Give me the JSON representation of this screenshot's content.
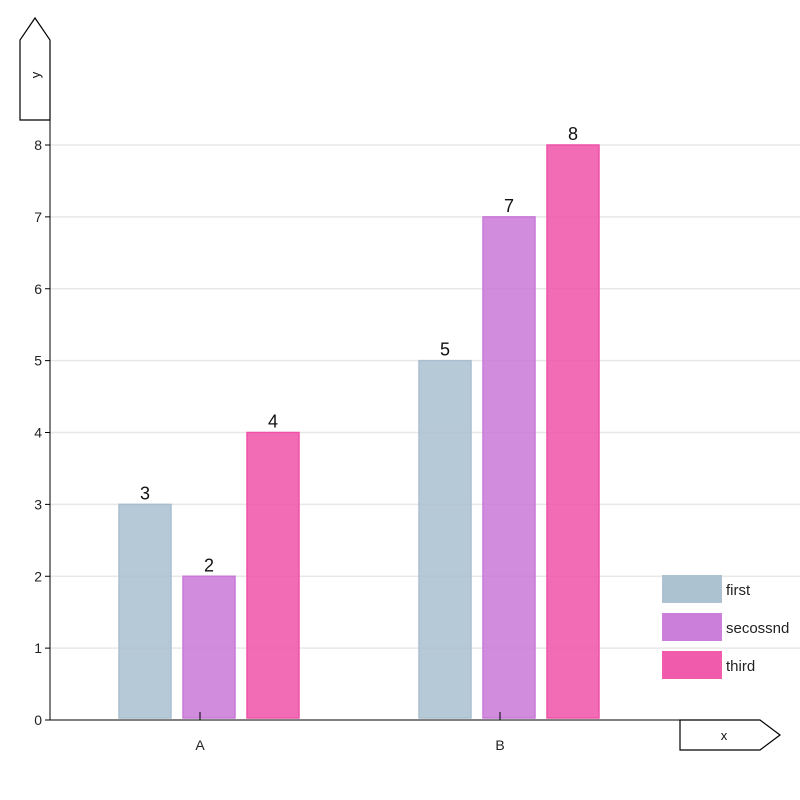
{
  "chart_data": {
    "type": "bar",
    "categories": [
      "A",
      "B"
    ],
    "series": [
      {
        "name": "first",
        "values": [
          3,
          5
        ],
        "color": "#a9bfcf"
      },
      {
        "name": "secossnd",
        "values": [
          2,
          7
        ],
        "color": "#c978d8"
      },
      {
        "name": "third",
        "values": [
          4,
          8
        ],
        "color": "#f052a8"
      }
    ],
    "ylim": [
      0,
      8
    ],
    "yticks": [
      0,
      1,
      2,
      3,
      4,
      5,
      6,
      7,
      8
    ],
    "xlabel": "x",
    "ylabel": "y",
    "grid": true,
    "legend_position": "bottom-right"
  }
}
